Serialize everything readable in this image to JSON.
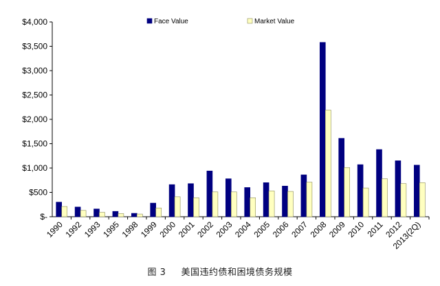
{
  "chart_data": {
    "type": "bar",
    "categories": [
      "1990",
      "1992",
      "1993",
      "1995",
      "1998",
      "1999",
      "2000",
      "2001",
      "2002",
      "2003",
      "2004",
      "2005",
      "2006",
      "2007",
      "2008",
      "2009",
      "2010",
      "2011",
      "2012",
      "2013(2Q)"
    ],
    "series": [
      {
        "name": "Face Value",
        "color": "#000080",
        "values": [
          300,
          200,
          160,
          110,
          70,
          280,
          660,
          680,
          940,
          780,
          600,
          700,
          630,
          860,
          3580,
          1610,
          1070,
          1380,
          1150,
          1060
        ]
      },
      {
        "name": "Market Value",
        "color": "#ffffc0",
        "values": [
          210,
          130,
          90,
          65,
          55,
          180,
          410,
          390,
          510,
          510,
          390,
          530,
          520,
          710,
          2190,
          1010,
          590,
          780,
          680,
          700
        ]
      }
    ],
    "yticks": [
      "$-",
      "$500",
      "$1,000",
      "$1,500",
      "$2,000",
      "$2,500",
      "$3,000",
      "$3,500",
      "$4,000"
    ],
    "ylim": [
      0,
      4000
    ],
    "legend": "top",
    "grid": false,
    "title": "",
    "xlabel": "",
    "ylabel": ""
  },
  "caption": {
    "figure_no": "图 3",
    "text": "美国违约债和困境债务规模"
  }
}
